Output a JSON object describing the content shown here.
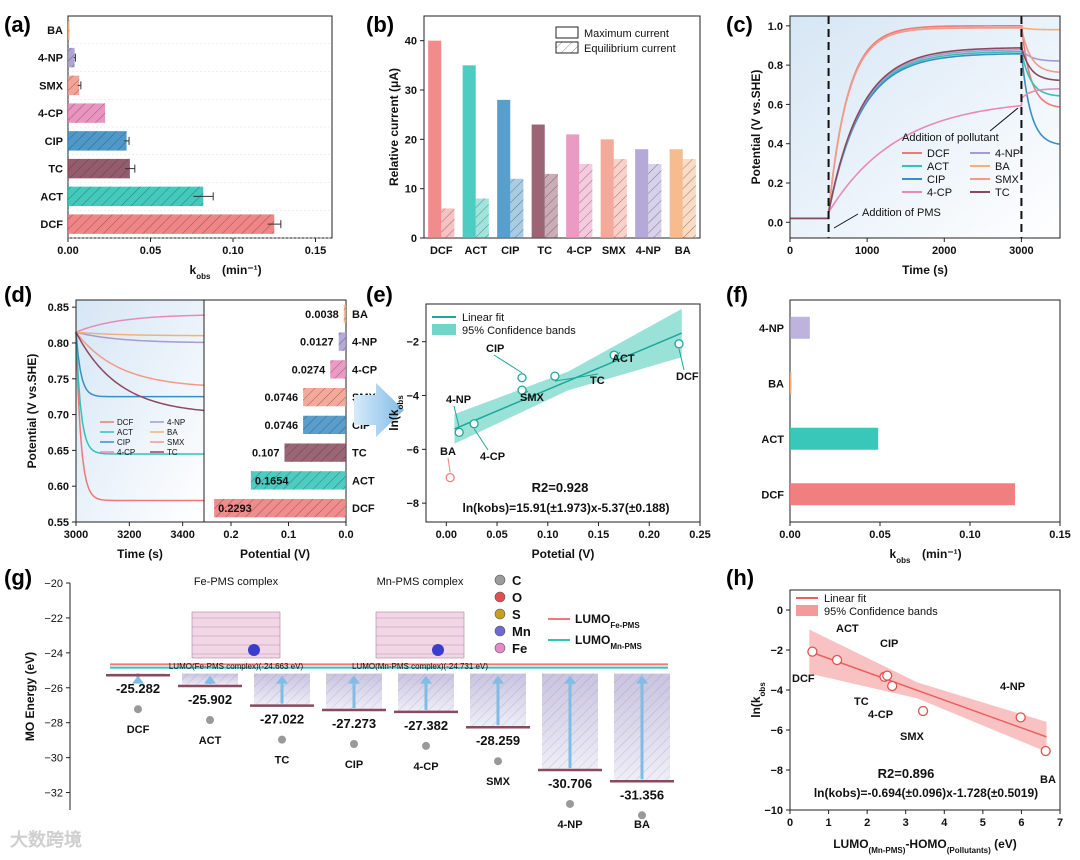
{
  "panels": {
    "a": "(a)",
    "b": "(b)",
    "c": "(c)",
    "d": "(d)",
    "e": "(e)",
    "f": "(f)",
    "g": "(g)",
    "h": "(h)"
  },
  "watermark": "大数跨境",
  "colors": {
    "DCF": "#f07878",
    "ACT": "#2ec4b6",
    "TC": "#8a4a5e",
    "CIP": "#3b8ec4",
    "4-CP": "#e88ab8",
    "SMX": "#f29a8a",
    "4-NP": "#a79ad0",
    "BA": "#f4b07a"
  },
  "chart_data": [
    {
      "id": "a",
      "type": "bar",
      "orientation": "horizontal",
      "categories": [
        "BA",
        "4-NP",
        "SMX",
        "4-CP",
        "CIP",
        "TC",
        "ACT",
        "DCF"
      ],
      "values": [
        0.0005,
        0.004,
        0.0068,
        0.0225,
        0.0355,
        0.0375,
        0.082,
        0.125
      ],
      "errors": [
        0,
        0.0005,
        0.001,
        0,
        0.0015,
        0.003,
        0.006,
        0.004
      ],
      "xlabel": "kobs (min-1)",
      "xticks": [
        "0.00",
        "0.05",
        "0.10",
        "0.15"
      ],
      "xlim": [
        0,
        0.16
      ]
    },
    {
      "id": "b",
      "type": "bar",
      "categories": [
        "DCF",
        "ACT",
        "CIP",
        "TC",
        "4-CP",
        "SMX",
        "4-NP",
        "BA"
      ],
      "series": [
        {
          "name": "Maximum current",
          "values": [
            40,
            35,
            28,
            23,
            21,
            20,
            18,
            18
          ]
        },
        {
          "name": "Equilibrium current",
          "values": [
            6,
            8,
            12,
            13,
            15,
            16,
            15,
            16
          ]
        }
      ],
      "ylabel": "Relative current (μA)",
      "ylim": [
        0,
        45
      ],
      "yticks": [
        "0",
        "10",
        "20",
        "30",
        "40"
      ]
    },
    {
      "id": "c",
      "type": "line",
      "xlabel": "Time (s)",
      "ylabel": "Potential (V vs.SHE)",
      "xlim": [
        0,
        3500
      ],
      "ylim": [
        -0.08,
        1.05
      ],
      "xticks": [
        "0",
        "1000",
        "2000",
        "3000"
      ],
      "yticks": [
        "0.0",
        "0.2",
        "0.4",
        "0.6",
        "0.8",
        "1.0"
      ],
      "vlines": [
        500,
        3000
      ],
      "annotations": [
        "Addition of PMS",
        "Addition of pollutant"
      ],
      "series": [
        {
          "name": "DCF",
          "plateau": 1.0,
          "final": 0.58
        },
        {
          "name": "ACT",
          "plateau": 0.87,
          "final": 0.64
        },
        {
          "name": "CIP",
          "plateau": 0.86,
          "final": 0.39
        },
        {
          "name": "4-CP",
          "plateau": 0.63,
          "final": 0.68
        },
        {
          "name": "4-NP",
          "plateau": 0.88,
          "final": 0.82
        },
        {
          "name": "BA",
          "plateau": 0.99,
          "final": 0.98
        },
        {
          "name": "SMX",
          "plateau": 0.99,
          "final": 0.76
        },
        {
          "name": "TC",
          "plateau": 0.89,
          "final": 0.72
        }
      ]
    },
    {
      "id": "d",
      "type": "line",
      "xlabel": "Time (s)",
      "ylabel": "Potential (V vs.SHE)",
      "xlim": [
        3000,
        3480
      ],
      "ylim": [
        0.55,
        0.86
      ],
      "xticks": [
        "3000",
        "3200",
        "3400"
      ],
      "yticks": [
        "0.55",
        "0.60",
        "0.65",
        "0.70",
        "0.75",
        "0.80",
        "0.85"
      ],
      "series": [
        {
          "name": "DCF",
          "start": 0.815,
          "end": 0.58
        },
        {
          "name": "ACT",
          "start": 0.815,
          "end": 0.645
        },
        {
          "name": "CIP",
          "start": 0.815,
          "end": 0.725
        },
        {
          "name": "4-CP",
          "start": 0.815,
          "end": 0.84
        },
        {
          "name": "4-NP",
          "start": 0.815,
          "end": 0.8
        },
        {
          "name": "BA",
          "start": 0.815,
          "end": 0.81
        },
        {
          "name": "SMX",
          "start": 0.815,
          "end": 0.737
        },
        {
          "name": "TC",
          "start": 0.815,
          "end": 0.7
        }
      ]
    },
    {
      "id": "d-bar",
      "type": "bar",
      "orientation": "horizontal",
      "xlabel": "Potential (V)",
      "xticks": [
        "0.2",
        "0.1",
        "0.0"
      ],
      "categories": [
        "BA",
        "4-NP",
        "4-CP",
        "SMX",
        "CIP",
        "TC",
        "ACT",
        "DCF"
      ],
      "values": [
        0.0038,
        0.0127,
        0.0274,
        0.0746,
        0.0746,
        0.107,
        0.1654,
        0.2293
      ],
      "labels": [
        "0.0038",
        "0.0127",
        "0.0274",
        "0.0746",
        "0.0746",
        "0.107",
        "0.1654",
        "0.2293"
      ]
    },
    {
      "id": "e",
      "type": "scatter",
      "xlabel": "Potetial (V)",
      "ylabel": "ln(kobs)",
      "xlim": [
        -0.02,
        0.25
      ],
      "ylim": [
        -8.7,
        -0.6
      ],
      "xticks": [
        "0.00",
        "0.05",
        "0.10",
        "0.15",
        "0.20",
        "0.25"
      ],
      "yticks": [
        "-2",
        "-4",
        "-6",
        "-8"
      ],
      "legend": [
        "Linear fit",
        "95% Confidence bands"
      ],
      "points": [
        {
          "label": "DCF",
          "x": 0.2293,
          "y": -2.08
        },
        {
          "label": "ACT",
          "x": 0.1654,
          "y": -2.5
        },
        {
          "label": "TC",
          "x": 0.107,
          "y": -3.28
        },
        {
          "label": "CIP",
          "x": 0.0746,
          "y": -3.34
        },
        {
          "label": "SMX",
          "x": 0.0746,
          "y": -3.8
        },
        {
          "label": "4-CP",
          "x": 0.0274,
          "y": -5.05
        },
        {
          "label": "4-NP",
          "x": 0.0127,
          "y": -5.37
        },
        {
          "label": "BA",
          "x": 0.0038,
          "y": -7.05
        }
      ],
      "fit": {
        "slope": 15.91,
        "intercept": -5.37
      },
      "r2": "R2=0.928",
      "equation": "ln(kobs)=15.91(±1.973)x-5.37(±0.188)"
    },
    {
      "id": "f",
      "type": "bar",
      "orientation": "horizontal",
      "categories": [
        "4-NP",
        "BA",
        "ACT",
        "DCF"
      ],
      "values": [
        0.011,
        0.0005,
        0.049,
        0.125
      ],
      "xlabel": "kobs (min-1)",
      "xlim": [
        0,
        0.15
      ],
      "xticks": [
        "0.00",
        "0.05",
        "0.10",
        "0.15"
      ]
    },
    {
      "id": "g",
      "type": "bar",
      "ylabel": "MO Energy (eV)",
      "ylim": [
        -33,
        -20
      ],
      "yticks": [
        "-20",
        "-22",
        "-24",
        "-26",
        "-28",
        "-30",
        "-32"
      ],
      "reference_lines": [
        {
          "name": "LUMOFe-PMS",
          "value": -24.663
        },
        {
          "name": "LUMOMn-PMS",
          "value": -24.731
        }
      ],
      "complexes": [
        {
          "title": "Fe-PMS complex",
          "caption": "LUMO(Fe-PMS complex)(-24.663 eV)"
        },
        {
          "title": "Mn-PMS complex",
          "caption": "LUMO(Mn-PMS complex)(-24.731 eV)"
        }
      ],
      "atom_legend": [
        "C",
        "O",
        "S",
        "Mn",
        "Fe"
      ],
      "categories": [
        "DCF",
        "ACT",
        "TC",
        "CIP",
        "4-CP",
        "SMX",
        "4-NP",
        "BA"
      ],
      "values": [
        -25.282,
        -25.902,
        -27.022,
        -27.273,
        -27.382,
        -28.259,
        -30.706,
        -31.356
      ],
      "labels": [
        "-25.282",
        "-25.902",
        "-27.022",
        "-27.273",
        "-27.382",
        "-28.259",
        "-30.706",
        "-31.356"
      ]
    },
    {
      "id": "h",
      "type": "scatter",
      "xlabel": "LUMO(Mn-PMS)-HOMO(Pollutants) (eV)",
      "ylabel": "ln(kobs)",
      "xlim": [
        0,
        7
      ],
      "ylim": [
        -10,
        1
      ],
      "xticks": [
        "0",
        "1",
        "2",
        "3",
        "4",
        "5",
        "6",
        "7"
      ],
      "yticks": [
        "0",
        "-2",
        "-4",
        "-6",
        "-8",
        "-10"
      ],
      "legend": [
        "Linear fit",
        "95% Confidence bands"
      ],
      "points": [
        {
          "label": "DCF",
          "x": 0.58,
          "y": -2.08
        },
        {
          "label": "ACT",
          "x": 1.22,
          "y": -2.5
        },
        {
          "label": "CIP",
          "x": 2.45,
          "y": -3.34
        },
        {
          "label": "TC",
          "x": 2.52,
          "y": -3.28
        },
        {
          "label": "4-CP",
          "x": 2.65,
          "y": -3.8
        },
        {
          "label": "SMX",
          "x": 3.45,
          "y": -5.05
        },
        {
          "label": "4-NP",
          "x": 5.98,
          "y": -5.37
        },
        {
          "label": "BA",
          "x": 6.63,
          "y": -7.05
        }
      ],
      "fit": {
        "slope": -0.694,
        "intercept": -1.728
      },
      "r2": "R2=0.896",
      "equation": "ln(kobs)=-0.694(±0.096)x-1.728(±0.5019)"
    }
  ]
}
